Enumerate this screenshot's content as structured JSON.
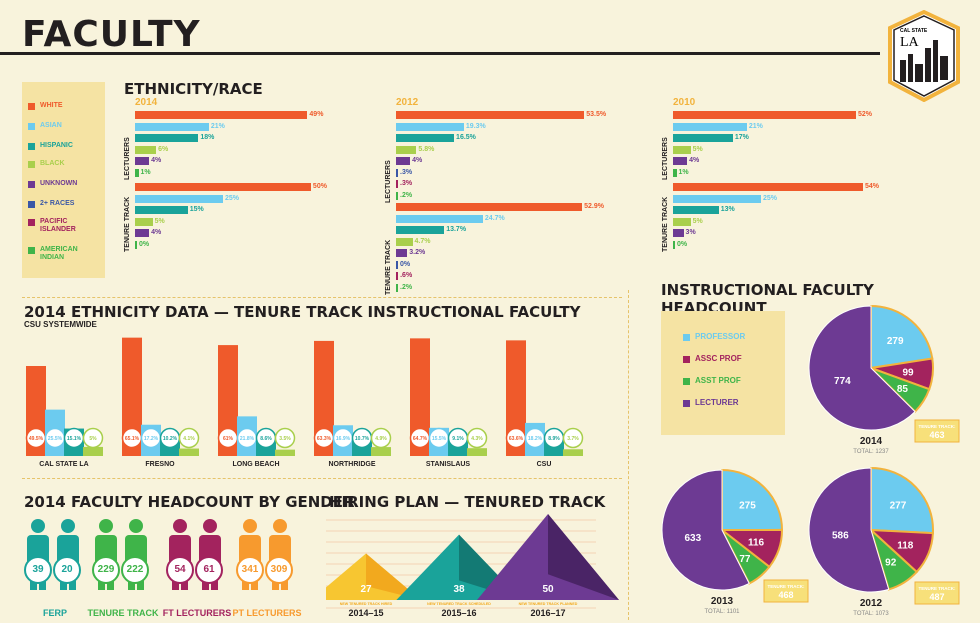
{
  "page": {
    "title": "FACULTY"
  },
  "logo": {
    "small": "CAL STATE",
    "big": "LA"
  },
  "colors": {
    "white": "#ef5a2b",
    "asian": "#6ccbef",
    "hispanic": "#1aa39a",
    "black": "#a9cf4c",
    "unknown": "#6d3a93",
    "two_plus": "#3a57a6",
    "pacific": "#a3235e",
    "american_indian": "#3fb449",
    "professor": "#6ccbef",
    "assc": "#a3235e",
    "asst": "#3fb449",
    "lecturer": "#6d3a93"
  },
  "ethnicity": {
    "section_title": "ETHNICITY/RACE",
    "legend": [
      "WHITE",
      "ASIAN",
      "HISPANIC",
      "BLACK",
      "UNKNOWN",
      "2+ RACES",
      "PACIFIC ISLANDER",
      "AMERICAN INDIAN"
    ],
    "lecturers_label": "LECTURERS",
    "tenure_label": "TENURE TRACK"
  },
  "chart_data": [
    {
      "type": "bar",
      "title": "ETHNICITY/RACE",
      "panels": [
        {
          "year": "2014",
          "lecturers": [
            {
              "v": 49,
              "t": "49%"
            },
            {
              "v": 21,
              "t": "21%"
            },
            {
              "v": 18,
              "t": "18%"
            },
            {
              "v": 6,
              "t": "6%"
            },
            {
              "v": 4,
              "t": "4%"
            },
            {
              "v": 1,
              "t": "1%"
            }
          ],
          "tenure": [
            {
              "v": 50,
              "t": "50%"
            },
            {
              "v": 25,
              "t": "25%"
            },
            {
              "v": 15,
              "t": "15%"
            },
            {
              "v": 5,
              "t": "5%"
            },
            {
              "v": 4,
              "t": "4%"
            },
            {
              "v": 0,
              "t": "0%"
            }
          ]
        },
        {
          "year": "2012",
          "lecturers": [
            {
              "v": 53.5,
              "t": "53.5%"
            },
            {
              "v": 19.3,
              "t": "19.3%"
            },
            {
              "v": 16.5,
              "t": "16.5%"
            },
            {
              "v": 5.8,
              "t": "5.8%"
            },
            {
              "v": 4,
              "t": "4%"
            },
            {
              "v": 0.3,
              "t": ".3%"
            },
            {
              "v": 0.3,
              "t": ".3%"
            },
            {
              "v": 0.2,
              "t": ".2%"
            }
          ],
          "tenure": [
            {
              "v": 52.9,
              "t": "52.9%"
            },
            {
              "v": 24.7,
              "t": "24.7%"
            },
            {
              "v": 13.7,
              "t": "13.7%"
            },
            {
              "v": 4.7,
              "t": "4.7%"
            },
            {
              "v": 3.2,
              "t": "3.2%"
            },
            {
              "v": 0,
              "t": "0%"
            },
            {
              "v": 0.6,
              "t": ".6%"
            },
            {
              "v": 0.2,
              "t": ".2%"
            }
          ]
        },
        {
          "year": "2010",
          "lecturers": [
            {
              "v": 52,
              "t": "52%"
            },
            {
              "v": 21,
              "t": "21%"
            },
            {
              "v": 17,
              "t": "17%"
            },
            {
              "v": 5,
              "t": "5%"
            },
            {
              "v": 4,
              "t": "4%"
            },
            {
              "v": 1,
              "t": "1%"
            }
          ],
          "tenure": [
            {
              "v": 54,
              "t": "54%"
            },
            {
              "v": 25,
              "t": "25%"
            },
            {
              "v": 13,
              "t": "13%"
            },
            {
              "v": 5,
              "t": "5%"
            },
            {
              "v": 3,
              "t": "3%"
            },
            {
              "v": 0,
              "t": "0%"
            }
          ]
        }
      ]
    },
    {
      "type": "bar",
      "title": "2014 ETHNICITY DATA — TENURE TRACK INSTRUCTIONAL FACULTY",
      "subtitle": "CSU SYSTEMWIDE",
      "categories": [
        "CAL STATE LA",
        "FRESNO",
        "LONG BEACH",
        "NORTHRIDGE",
        "STANISLAUS",
        "CSU"
      ],
      "series": [
        {
          "name": "WHITE",
          "values": [
            49.5,
            65.1,
            61,
            63.3,
            64.7,
            63.6
          ],
          "labels": [
            "49.5%",
            "65.1%",
            "61%",
            "63.3%",
            "64.7%",
            "63.6%"
          ]
        },
        {
          "name": "ASIAN",
          "values": [
            25.5,
            17.2,
            21.8,
            16.9,
            15.5,
            18.2
          ],
          "labels": [
            "25.5%",
            "17.2%",
            "21.8%",
            "16.9%",
            "15.5%",
            "18.2%"
          ]
        },
        {
          "name": "HISPANIC",
          "values": [
            15.1,
            10.2,
            8.6,
            10.7,
            9.1,
            8.9
          ],
          "labels": [
            "15.1%",
            "10.2%",
            "8.6%",
            "10.7%",
            "9.1%",
            "8.9%"
          ]
        },
        {
          "name": "BLACK",
          "values": [
            5,
            4.1,
            3.5,
            4.9,
            4.3,
            3.7
          ],
          "labels": [
            "5%",
            "4.1%",
            "3.5%",
            "4.9%",
            "4.3%",
            "3.7%"
          ]
        }
      ]
    },
    {
      "type": "pie",
      "title": "INSTRUCTIONAL FACULTY HEADCOUNT",
      "legend": [
        "PROFESSOR",
        "ASSC PROF",
        "ASST PROF",
        "LECTURER"
      ],
      "pies": [
        {
          "year": "2014",
          "total": "TOTAL: 1237",
          "values": [
            279,
            99,
            85,
            774
          ],
          "tenure_label": "TENURE TRACK:",
          "tenure_value": "463"
        },
        {
          "year": "2013",
          "total": "TOTAL: 1101",
          "values": [
            275,
            116,
            77,
            633
          ],
          "tenure_label": "TENURE TRACK:",
          "tenure_value": "468"
        },
        {
          "year": "2012",
          "total": "TOTAL: 1073",
          "values": [
            277,
            118,
            92,
            586
          ],
          "tenure_label": "TENURE TRACK:",
          "tenure_value": "487"
        }
      ]
    },
    {
      "type": "bar",
      "title": "2014 FACULTY HEADCOUNT BY GENDER",
      "categories": [
        "FERP",
        "TENURE TRACK",
        "FT LECTURERS",
        "PT LECTURERS"
      ],
      "values_a": [
        39,
        229,
        54,
        341
      ],
      "values_b": [
        20,
        222,
        61,
        309
      ]
    },
    {
      "type": "area",
      "title": "HIRING PLAN — TENURED TRACK",
      "categories": [
        "2014–15",
        "2015–16",
        "2016–17"
      ],
      "values": [
        27,
        38,
        50
      ],
      "sublabels": [
        "NEW TENURED TRACK HIRED",
        "NEW TENURED TRACK SCHEDULED",
        "NEW TENURED TRACK PLANNED"
      ]
    }
  ]
}
